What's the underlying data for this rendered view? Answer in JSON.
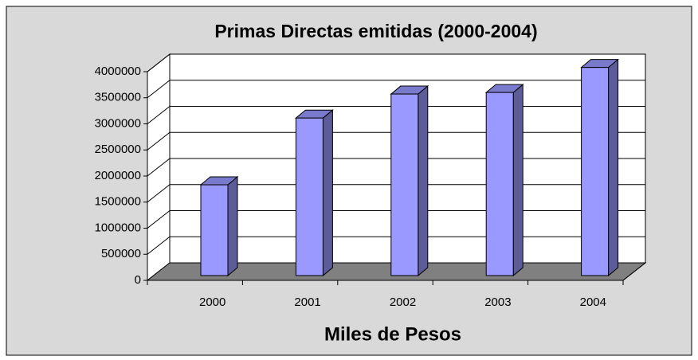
{
  "chart_data": {
    "type": "bar",
    "title": "Primas Directas emitidas (2000-2004)",
    "x_label": "Miles de Pesos",
    "categories": [
      "2000",
      "2001",
      "2002",
      "2003",
      "2004"
    ],
    "values": [
      1740000,
      3020000,
      3480000,
      3510000,
      3990000
    ],
    "color": "#9999ff",
    "ylim": [
      0,
      4000000
    ],
    "yticks": [
      0,
      500000,
      1000000,
      1500000,
      2000000,
      2500000,
      3000000,
      3500000,
      4000000
    ],
    "grid": true
  }
}
